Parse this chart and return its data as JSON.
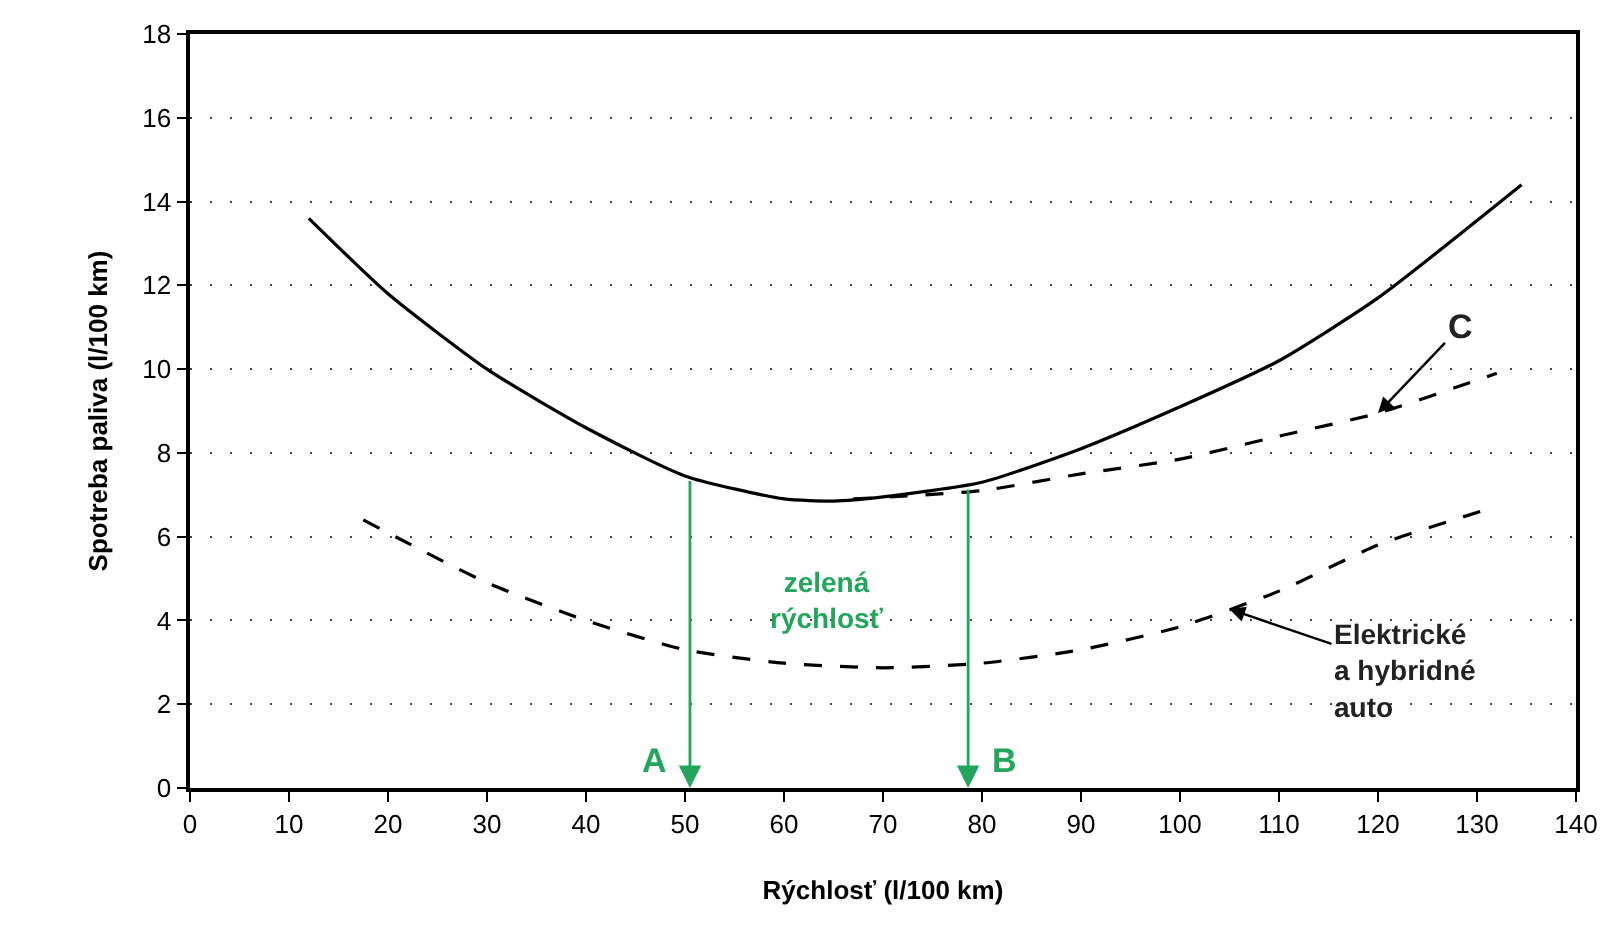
{
  "chart_data": {
    "type": "line",
    "xlabel": "Rýchlosť (l/100 km)",
    "ylabel": "Spotreba paliva (l/100 km)",
    "xlim": [
      0,
      140
    ],
    "xticks": [
      0,
      10,
      20,
      30,
      40,
      50,
      60,
      70,
      80,
      90,
      100,
      110,
      120,
      130,
      140
    ],
    "ylim": [
      0,
      18
    ],
    "yticks": [
      0,
      2,
      4,
      6,
      8,
      10,
      12,
      14,
      16,
      18
    ],
    "grid": "y",
    "marker": "none",
    "series": [
      {
        "color": "#000000",
        "line_style": "solid",
        "x": [
          12,
          20,
          30,
          40,
          50,
          60,
          65,
          70,
          80,
          90,
          100,
          110,
          120,
          134.5
        ],
        "values": [
          13.6,
          11.8,
          10,
          8.6,
          7.45,
          6.9,
          6.85,
          6.95,
          7.3,
          8.1,
          9.1,
          10.2,
          11.7,
          14.4
        ]
      },
      {
        "color": "#000000",
        "line_style": "dashed",
        "x": [
          67,
          80,
          90,
          100,
          110,
          120,
          132
        ],
        "values": [
          6.9,
          7.1,
          7.5,
          7.85,
          8.4,
          8.95,
          9.9
        ]
      },
      {
        "color": "#000000",
        "line_style": "dashed",
        "x": [
          17.5,
          30,
          40,
          50,
          60,
          70,
          80,
          90,
          100,
          110,
          120,
          131
        ],
        "values": [
          6.4,
          4.9,
          4,
          3.3,
          2.98,
          2.87,
          2.98,
          3.3,
          3.85,
          4.7,
          5.8,
          6.65
        ]
      }
    ],
    "annotations": [
      {
        "text": "A",
        "x": 50.5,
        "y": 7.4
      },
      {
        "text": "B",
        "x": 78.6,
        "y": 7.2
      },
      "zelená\nrýchlosť",
      {
        "text": "C",
        "x": 120,
        "y": 8.95
      },
      {
        "text": "Elektrické\na hybridné\nauto",
        "x": 105,
        "y": 4.27
      }
    ]
  }
}
